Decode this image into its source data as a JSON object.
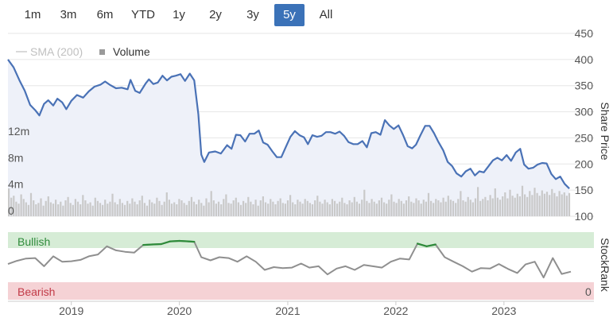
{
  "range_selector": {
    "buttons": [
      "1m",
      "3m",
      "6m",
      "YTD",
      "1y",
      "2y",
      "3y",
      "5y",
      "All"
    ],
    "active": "5y"
  },
  "legend": {
    "sma_label": "SMA (200)",
    "volume_label": "Volume"
  },
  "colors": {
    "price_line": "#4a72b6",
    "price_fill": "#eef1f9",
    "volume_bar": "#c9c9c9",
    "stockrank_line": "#8f8f8f",
    "stockrank_bullish_line": "#2e8b3a",
    "bullish_band": "#d6ecd6",
    "bearish_band": "#f5d2d5",
    "active_button": "#3b72b8"
  },
  "chart_data": [
    {
      "type": "line",
      "name": "price",
      "ylabel": "Share Price",
      "yticks": [
        450,
        400,
        350,
        300,
        250,
        200,
        150,
        100
      ],
      "ylim": [
        100,
        450
      ],
      "xlim": [
        "2018-06-01",
        "2023-08-15"
      ],
      "xticks": [
        "2019",
        "2020",
        "2021",
        "2022",
        "2023"
      ],
      "series": [
        {
          "values": [
            [
              "2018-06-01",
              400
            ],
            [
              "2018-06-20",
              385
            ],
            [
              "2018-07-10",
              360
            ],
            [
              "2018-07-28",
              340
            ],
            [
              "2018-08-15",
              313
            ],
            [
              "2018-09-01",
              303
            ],
            [
              "2018-09-15",
              293
            ],
            [
              "2018-10-01",
              315
            ],
            [
              "2018-10-15",
              322
            ],
            [
              "2018-11-01",
              312
            ],
            [
              "2018-11-15",
              325
            ],
            [
              "2018-12-01",
              318
            ],
            [
              "2018-12-15",
              305
            ],
            [
              "2019-01-01",
              321
            ],
            [
              "2019-01-20",
              332
            ],
            [
              "2019-02-10",
              327
            ],
            [
              "2019-03-01",
              339
            ],
            [
              "2019-03-20",
              348
            ],
            [
              "2019-04-10",
              352
            ],
            [
              "2019-04-25",
              358
            ],
            [
              "2019-05-10",
              352
            ],
            [
              "2019-06-01",
              345
            ],
            [
              "2019-06-20",
              346
            ],
            [
              "2019-07-10",
              343
            ],
            [
              "2019-07-20",
              361
            ],
            [
              "2019-08-05",
              340
            ],
            [
              "2019-08-20",
              336
            ],
            [
              "2019-09-10",
              355
            ],
            [
              "2019-09-20",
              362
            ],
            [
              "2019-10-05",
              353
            ],
            [
              "2019-10-20",
              356
            ],
            [
              "2019-11-05",
              369
            ],
            [
              "2019-11-20",
              360
            ],
            [
              "2019-12-05",
              367
            ],
            [
              "2019-12-20",
              369
            ],
            [
              "2020-01-05",
              372
            ],
            [
              "2020-01-20",
              359
            ],
            [
              "2020-02-05",
              373
            ],
            [
              "2020-02-20",
              360
            ],
            [
              "2020-03-05",
              295
            ],
            [
              "2020-03-15",
              218
            ],
            [
              "2020-03-25",
              204
            ],
            [
              "2020-04-10",
              222
            ],
            [
              "2020-05-01",
              224
            ],
            [
              "2020-05-20",
              220
            ],
            [
              "2020-06-10",
              236
            ],
            [
              "2020-06-25",
              229
            ],
            [
              "2020-07-10",
              256
            ],
            [
              "2020-07-25",
              255
            ],
            [
              "2020-08-10",
              243
            ],
            [
              "2020-08-25",
              258
            ],
            [
              "2020-09-10",
              258
            ],
            [
              "2020-09-25",
              264
            ],
            [
              "2020-10-10",
              241
            ],
            [
              "2020-10-25",
              237
            ],
            [
              "2020-11-10",
              224
            ],
            [
              "2020-11-25",
              213
            ],
            [
              "2020-12-10",
              213
            ],
            [
              "2020-12-25",
              232
            ],
            [
              "2021-01-10",
              252
            ],
            [
              "2021-01-25",
              263
            ],
            [
              "2021-02-10",
              255
            ],
            [
              "2021-02-25",
              251
            ],
            [
              "2021-03-10",
              238
            ],
            [
              "2021-03-25",
              255
            ],
            [
              "2021-04-10",
              252
            ],
            [
              "2021-04-25",
              254
            ],
            [
              "2021-05-10",
              261
            ],
            [
              "2021-05-25",
              261
            ],
            [
              "2021-06-10",
              258
            ],
            [
              "2021-06-25",
              262
            ],
            [
              "2021-07-10",
              254
            ],
            [
              "2021-07-25",
              242
            ],
            [
              "2021-08-10",
              238
            ],
            [
              "2021-08-25",
              238
            ],
            [
              "2021-09-10",
              244
            ],
            [
              "2021-09-25",
              232
            ],
            [
              "2021-10-10",
              259
            ],
            [
              "2021-10-25",
              261
            ],
            [
              "2021-11-10",
              256
            ],
            [
              "2021-11-25",
              284
            ],
            [
              "2021-12-10",
              274
            ],
            [
              "2021-12-25",
              267
            ],
            [
              "2022-01-10",
              274
            ],
            [
              "2022-01-25",
              256
            ],
            [
              "2022-02-10",
              234
            ],
            [
              "2022-02-25",
              230
            ],
            [
              "2022-03-10",
              237
            ],
            [
              "2022-03-25",
              255
            ],
            [
              "2022-04-10",
              273
            ],
            [
              "2022-04-25",
              273
            ],
            [
              "2022-05-10",
              259
            ],
            [
              "2022-05-25",
              242
            ],
            [
              "2022-06-10",
              226
            ],
            [
              "2022-06-25",
              204
            ],
            [
              "2022-07-10",
              196
            ],
            [
              "2022-07-25",
              182
            ],
            [
              "2022-08-10",
              176
            ],
            [
              "2022-08-25",
              186
            ],
            [
              "2022-09-10",
              191
            ],
            [
              "2022-09-25",
              178
            ],
            [
              "2022-10-10",
              186
            ],
            [
              "2022-10-25",
              184
            ],
            [
              "2022-11-10",
              196
            ],
            [
              "2022-11-25",
              207
            ],
            [
              "2022-12-10",
              212
            ],
            [
              "2022-12-25",
              207
            ],
            [
              "2023-01-10",
              217
            ],
            [
              "2023-01-25",
              206
            ],
            [
              "2023-02-10",
              222
            ],
            [
              "2023-02-25",
              229
            ],
            [
              "2023-03-10",
              199
            ],
            [
              "2023-03-25",
              191
            ],
            [
              "2023-04-10",
              193
            ],
            [
              "2023-04-25",
              199
            ],
            [
              "2023-05-10",
              202
            ],
            [
              "2023-05-25",
              201
            ],
            [
              "2023-06-10",
              181
            ],
            [
              "2023-06-25",
              171
            ],
            [
              "2023-07-10",
              176
            ],
            [
              "2023-07-25",
              162
            ],
            [
              "2023-08-10",
              153
            ]
          ]
        }
      ]
    },
    {
      "type": "bar",
      "name": "volume",
      "yticks": [
        "12m",
        "8m",
        "4m",
        "0"
      ],
      "ytick_values": [
        12,
        8,
        4,
        0
      ],
      "ylim": [
        0,
        12
      ],
      "unit": "m",
      "values_note": "weekly volume in millions (estimated)",
      "values": [
        4.2,
        2.8,
        3.1,
        2.2,
        1.9,
        3.3,
        2.6,
        2.1,
        1.7,
        3.5,
        2.4,
        1.8,
        2.0,
        2.7,
        1.6,
        2.3,
        3.0,
        2.1,
        1.9,
        2.5,
        1.8,
        2.2,
        1.6,
        2.4,
        2.9,
        2.0,
        1.7,
        2.6,
        2.2,
        1.8,
        3.2,
        2.4,
        1.9,
        2.1,
        1.6,
        2.8,
        2.3,
        2.0,
        1.7,
        2.5,
        1.9,
        2.2,
        3.4,
        2.1,
        1.8,
        2.6,
        2.0,
        1.7,
        2.3,
        1.9,
        2.7,
        2.2,
        1.8,
        2.4,
        3.1,
        2.0,
        1.6,
        2.5,
        2.1,
        1.9,
        2.8,
        2.3,
        1.7,
        2.2,
        3.6,
        2.5,
        1.9,
        2.1,
        1.8,
        2.6,
        2.4,
        2.0,
        1.7,
        2.3,
        2.9,
        2.2,
        1.8,
        2.5,
        2.0,
        1.6,
        2.7,
        2.1,
        3.8,
        2.4,
        1.9,
        2.2,
        1.8,
        2.6,
        3.3,
        2.0,
        1.9,
        2.4,
        2.8,
        2.1,
        1.7,
        2.3,
        2.0,
        2.9,
        2.2,
        1.8,
        2.5,
        1.6,
        2.4,
        3.0,
        2.1,
        1.9,
        2.6,
        2.2,
        1.8,
        2.3,
        2.7,
        2.0,
        1.9,
        2.4,
        3.2,
        2.1,
        1.8,
        2.5,
        2.2,
        1.9,
        2.6,
        2.3,
        2.0,
        1.8,
        2.4,
        3.1,
        2.2,
        1.9,
        2.5,
        2.1,
        1.8,
        2.6,
        2.3,
        1.9,
        2.2,
        2.8,
        2.0,
        1.8,
        2.4,
        2.1,
        2.9,
        2.2,
        1.9,
        2.5,
        4.0,
        2.3,
        2.0,
        2.6,
        2.2,
        1.9,
        2.4,
        2.8,
        2.1,
        1.9,
        2.5,
        3.3,
        2.2,
        2.0,
        2.6,
        2.3,
        1.9,
        2.4,
        3.0,
        2.2,
        2.0,
        2.7,
        2.4,
        1.9,
        2.5,
        2.2,
        3.5,
        2.3,
        2.0,
        2.6,
        2.4,
        2.1,
        2.8,
        2.2,
        3.1,
        2.5,
        2.3,
        2.0,
        2.6,
        3.8,
        2.4,
        2.2,
        2.9,
        2.5,
        2.1,
        2.7,
        4.4,
        2.3,
        2.6,
        2.9,
        2.4,
        3.2,
        2.7,
        4.2,
        2.8,
        2.5,
        3.0,
        3.6,
        2.7,
        4.0,
        3.1,
        2.8,
        3.4,
        3.0,
        4.6,
        3.3,
        2.9,
        3.8,
        3.2,
        4.3,
        3.5,
        3.1,
        3.9,
        3.4,
        3.7,
        3.2,
        4.1,
        3.5,
        3.0,
        3.8,
        3.3,
        3.6,
        3.1,
        3.5
      ]
    },
    {
      "type": "line",
      "name": "stockrank",
      "ylabel": "StockRank",
      "band_labels": [
        "Bullish",
        "Bearish"
      ],
      "right_tick": "0",
      "ylim": [
        0,
        100
      ],
      "series": [
        {
          "values": [
            [
              "2018-06-01",
              35
            ],
            [
              "2018-07-01",
              42
            ],
            [
              "2018-08-01",
              47
            ],
            [
              "2018-09-01",
              48
            ],
            [
              "2018-10-01",
              30
            ],
            [
              "2018-11-01",
              52
            ],
            [
              "2018-12-01",
              40
            ],
            [
              "2019-01-01",
              41
            ],
            [
              "2019-02-01",
              44
            ],
            [
              "2019-03-01",
              52
            ],
            [
              "2019-04-01",
              56
            ],
            [
              "2019-05-01",
              74
            ],
            [
              "2019-06-01",
              65
            ],
            [
              "2019-07-01",
              62
            ],
            [
              "2019-08-01",
              60
            ],
            [
              "2019-09-01",
              77
            ],
            [
              "2019-10-01",
              78
            ],
            [
              "2019-11-01",
              79
            ],
            [
              "2019-12-01",
              85
            ],
            [
              "2020-01-01",
              86
            ],
            [
              "2020-02-01",
              85
            ],
            [
              "2020-02-20",
              84
            ],
            [
              "2020-03-15",
              50
            ],
            [
              "2020-04-15",
              43
            ],
            [
              "2020-05-15",
              50
            ],
            [
              "2020-06-15",
              48
            ],
            [
              "2020-07-15",
              40
            ],
            [
              "2020-08-15",
              52
            ],
            [
              "2020-09-15",
              40
            ],
            [
              "2020-10-15",
              22
            ],
            [
              "2020-11-15",
              28
            ],
            [
              "2020-12-15",
              26
            ],
            [
              "2021-01-15",
              27
            ],
            [
              "2021-02-15",
              36
            ],
            [
              "2021-03-15",
              27
            ],
            [
              "2021-04-15",
              30
            ],
            [
              "2021-05-15",
              12
            ],
            [
              "2021-06-15",
              25
            ],
            [
              "2021-07-15",
              30
            ],
            [
              "2021-08-15",
              22
            ],
            [
              "2021-09-15",
              33
            ],
            [
              "2021-10-15",
              30
            ],
            [
              "2021-11-15",
              27
            ],
            [
              "2021-12-15",
              40
            ],
            [
              "2022-01-15",
              47
            ],
            [
              "2022-02-15",
              45
            ],
            [
              "2022-03-15",
              80
            ],
            [
              "2022-04-15",
              74
            ],
            [
              "2022-05-15",
              78
            ],
            [
              "2022-06-15",
              50
            ],
            [
              "2022-07-15",
              40
            ],
            [
              "2022-08-15",
              30
            ],
            [
              "2022-09-15",
              18
            ],
            [
              "2022-10-15",
              26
            ],
            [
              "2022-11-15",
              25
            ],
            [
              "2022-12-15",
              35
            ],
            [
              "2023-01-15",
              24
            ],
            [
              "2023-02-15",
              15
            ],
            [
              "2023-03-15",
              34
            ],
            [
              "2023-04-15",
              40
            ],
            [
              "2023-05-15",
              5
            ],
            [
              "2023-06-15",
              48
            ],
            [
              "2023-07-15",
              13
            ],
            [
              "2023-08-15",
              18
            ]
          ]
        }
      ],
      "bullish_threshold": 70
    }
  ]
}
